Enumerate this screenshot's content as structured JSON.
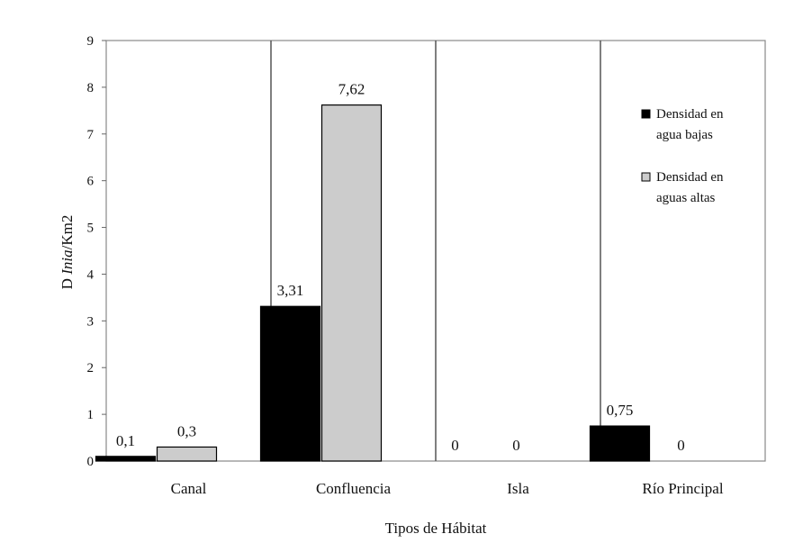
{
  "chart_data": {
    "type": "bar",
    "categories": [
      "Canal",
      "Confluencia",
      "Isla",
      "Río Principal"
    ],
    "series": [
      {
        "name": "Densidad en agua bajas",
        "legend_lines": [
          "Densidad en",
          "agua bajas"
        ],
        "values": [
          0.1,
          3.31,
          0,
          0.75
        ],
        "labels": [
          "0,1",
          "3,31",
          "0",
          "0,75"
        ],
        "color": "#000000"
      },
      {
        "name": "Densidad en aguas altas",
        "legend_lines": [
          "Densidad en",
          "aguas altas"
        ],
        "values": [
          0.3,
          7.62,
          0,
          0
        ],
        "labels": [
          "0,3",
          "7,62",
          "0",
          "0"
        ],
        "color": "#cccccc"
      }
    ],
    "xlabel": "Tipos de Hábitat",
    "ylabel": {
      "prefix": "D ",
      "italic": "Inia",
      "suffix": "/Km2"
    },
    "ylim": [
      0,
      9
    ],
    "yticks": [
      "0",
      "1",
      "2",
      "3",
      "4",
      "5",
      "6",
      "7",
      "8",
      "9"
    ],
    "grid": false,
    "legend_position": "right"
  }
}
